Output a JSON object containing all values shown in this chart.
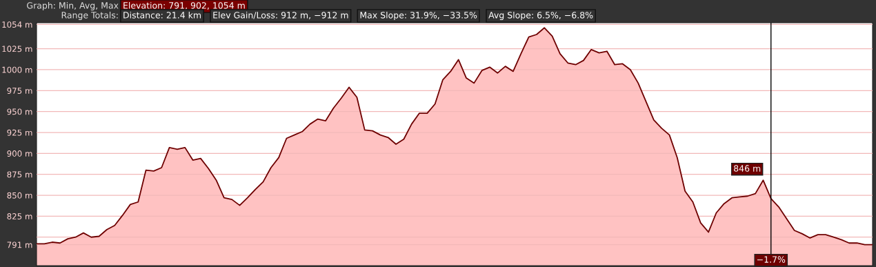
{
  "chart_data": {
    "type": "area",
    "title": "Graph: Min, Avg, Max",
    "subtitle": "Range Totals:",
    "annotations": [
      "Elevation: 791, 902, 1054 m",
      "Distance: 21.4 km",
      "Elev Gain/Loss: 912 m, −912 m",
      "Max Slope: 31.9%, −33.5%",
      "Avg Slope: 6.5%, −6.8%",
      "846 m",
      "−1.7%"
    ],
    "categories": [
      null,
      null,
      null,
      null,
      null,
      null,
      null,
      null,
      null,
      null,
      null,
      null,
      null,
      null,
      null,
      null,
      null,
      null,
      null,
      null,
      null,
      null,
      null,
      null,
      null,
      null,
      null,
      null,
      null,
      null,
      null,
      null,
      null,
      null,
      null,
      null,
      null,
      null,
      null,
      null,
      null,
      null,
      null,
      null,
      null,
      null,
      null,
      null,
      null,
      null,
      null,
      null,
      null,
      null,
      null,
      null,
      null,
      null,
      null,
      null,
      null,
      null,
      null,
      null,
      null,
      null,
      null,
      null,
      null,
      null,
      null,
      null,
      null,
      null,
      null,
      null,
      null,
      null,
      null,
      null,
      null,
      null,
      null,
      null,
      null,
      null,
      null,
      null,
      null,
      null,
      null,
      null,
      null,
      null,
      null,
      null,
      null,
      null,
      null,
      null,
      null,
      null,
      null,
      null,
      null,
      null,
      null,
      null
    ],
    "series": [
      {
        "color": "#6e0000",
        "values": [
          792,
          792,
          794,
          793,
          798,
          800,
          805,
          800,
          801,
          809,
          814,
          826,
          839,
          842,
          880,
          879,
          883,
          907,
          905,
          907,
          892,
          894,
          882,
          868,
          847,
          845,
          838,
          847,
          857,
          866,
          883,
          895,
          918,
          922,
          926,
          935,
          941,
          939,
          954,
          966,
          979,
          967,
          928,
          927,
          922,
          919,
          911,
          917,
          935,
          948,
          948,
          959,
          988,
          998,
          1012,
          990,
          984,
          999,
          1003,
          996,
          1004,
          998,
          1019,
          1039,
          1042,
          1050,
          1040,
          1019,
          1008,
          1006,
          1011,
          1024,
          1020,
          1022,
          1006,
          1007,
          1000,
          984,
          962,
          940,
          930,
          922,
          895,
          855,
          842,
          817,
          806,
          829,
          840,
          847,
          848,
          849,
          852,
          868,
          846,
          836,
          822,
          808,
          804,
          799,
          803,
          803,
          800,
          797,
          793,
          793,
          791,
          791
        ]
      }
    ],
    "ylim": [
      766,
      1056
    ],
    "yticks": [
      {
        "value": 791,
        "label": "791 m"
      },
      {
        "value": 800,
        "label": null
      },
      {
        "value": 825,
        "label": "825 m"
      },
      {
        "value": 850,
        "label": "850 m"
      },
      {
        "value": 875,
        "label": "875 m"
      },
      {
        "value": 900,
        "label": "900 m"
      },
      {
        "value": 925,
        "label": "925 m"
      },
      {
        "value": 950,
        "label": "950 m"
      },
      {
        "value": 975,
        "label": "975 m"
      },
      {
        "value": 1000,
        "label": "1000 m"
      },
      {
        "value": 1025,
        "label": "1025 m"
      },
      {
        "value": 1054,
        "label": "1054 m"
      }
    ],
    "tick_labels": "y",
    "grid": "y"
  }
}
